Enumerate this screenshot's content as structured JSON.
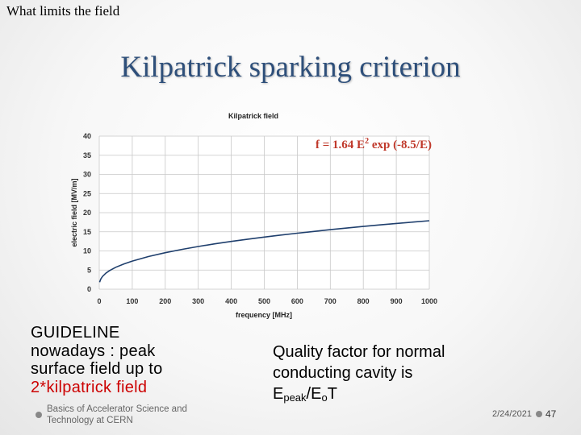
{
  "slide": {
    "top_label": "What limits the field",
    "title": "Kilpatrick sparking criterion"
  },
  "chart_data": {
    "type": "line",
    "title": "Kilpatrick field",
    "xlabel": "frequency [MHz]",
    "ylabel": "electric field [MV/m]",
    "xlim": [
      0,
      1000
    ],
    "ylim": [
      0,
      40
    ],
    "x_ticks": [
      0,
      100,
      200,
      300,
      400,
      500,
      600,
      700,
      800,
      900,
      1000
    ],
    "y_ticks": [
      0,
      5,
      10,
      15,
      20,
      25,
      30,
      35,
      40
    ],
    "grid": true,
    "legend": "none",
    "annotation": {
      "prefix": "f = 1.64 E",
      "sup": "2",
      "suffix": " exp (-8.5/E)"
    },
    "series": [
      {
        "color": "#1f3f6d",
        "x": [
          1,
          5,
          10,
          20,
          30,
          50,
          75,
          100,
          150,
          200,
          250,
          300,
          350,
          400,
          450,
          500,
          550,
          600,
          650,
          700,
          750,
          800,
          850,
          900,
          950,
          1000
        ],
        "y": [
          1.83,
          2.7,
          3.34,
          4.2,
          4.81,
          5.73,
          6.62,
          7.35,
          8.55,
          9.54,
          10.4,
          11.16,
          11.85,
          12.48,
          13.07,
          13.62,
          14.14,
          14.63,
          15.1,
          15.55,
          15.98,
          16.39,
          16.79,
          17.17,
          17.54,
          17.9
        ]
      }
    ]
  },
  "guideline": {
    "lines": [
      "GUIDELINE",
      "nowadays : peak",
      "surface field up to"
    ],
    "highlight": "2*kilpatrick field"
  },
  "quality": {
    "text": "Quality factor for normal conducting cavity is",
    "e_peak": "E",
    "e_peak_sub": "peak",
    "slash": "/E",
    "e0_sub": "o",
    "t": "T"
  },
  "footer": {
    "text": "Basics of Accelerator Science and Technology at CERN",
    "date": "2/24/2021",
    "page": "47"
  }
}
